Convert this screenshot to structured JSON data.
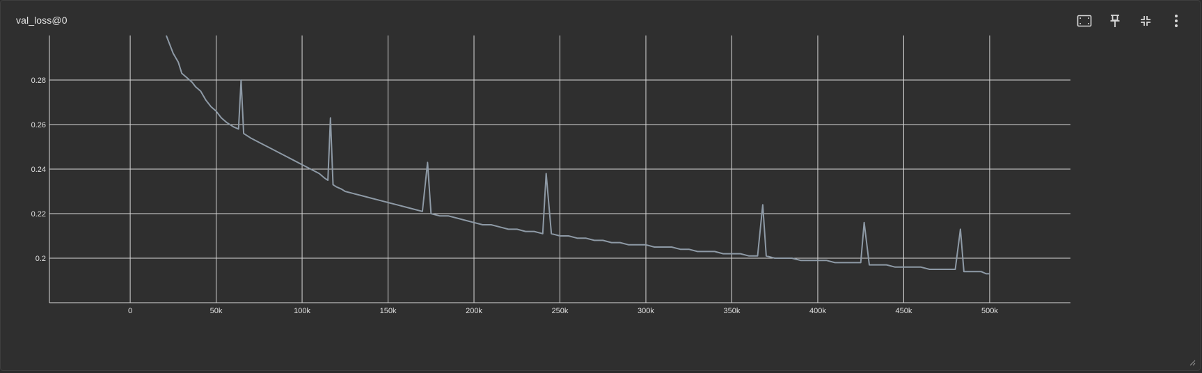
{
  "card": {
    "title": "val_loss@0"
  },
  "toolbar": {
    "items": [
      {
        "icon": "fit-domain-icon"
      },
      {
        "icon": "pin-icon"
      },
      {
        "icon": "collapse-icon"
      },
      {
        "icon": "more-vert-icon"
      }
    ]
  },
  "colors": {
    "background": "#2f2f2f",
    "grid": "#d9d9d9",
    "line": "#8e9aa6",
    "tick_text": "#e0e0e0"
  },
  "chart_data": {
    "type": "line",
    "title": "val_loss@0",
    "xlabel": "",
    "ylabel": "",
    "xlim": [
      -47000,
      547000
    ],
    "ylim": [
      0.18,
      0.3
    ],
    "x_ticks": [
      0,
      50000,
      100000,
      150000,
      200000,
      250000,
      300000,
      350000,
      400000,
      450000,
      500000
    ],
    "x_tick_labels": [
      "0",
      "50k",
      "100k",
      "150k",
      "200k",
      "250k",
      "300k",
      "350k",
      "400k",
      "450k",
      "500k"
    ],
    "y_ticks": [
      0.2,
      0.22,
      0.24,
      0.26,
      0.28
    ],
    "y_tick_labels": [
      "0.2",
      "0.22",
      "0.24",
      "0.26",
      "0.28"
    ],
    "grid": true,
    "legend": "none",
    "series": [
      {
        "x": [
          21000,
          25000,
          28000,
          30000,
          33000,
          36000,
          38000,
          41000,
          44000,
          47000,
          50000,
          53000,
          56000,
          60000,
          63000,
          64500,
          66000,
          70000,
          75000,
          80000,
          85000,
          90000,
          95000,
          100000,
          105000,
          110000,
          113000,
          115000,
          116500,
          118000,
          120000,
          123000,
          125000,
          130000,
          135000,
          140000,
          145000,
          150000,
          155000,
          160000,
          165000,
          170000,
          173000,
          175000,
          180000,
          185000,
          190000,
          195000,
          200000,
          205000,
          210000,
          215000,
          220000,
          225000,
          230000,
          235000,
          240000,
          242000,
          245000,
          250000,
          255000,
          260000,
          265000,
          270000,
          275000,
          280000,
          285000,
          290000,
          295000,
          300000,
          305000,
          310000,
          315000,
          320000,
          325000,
          330000,
          335000,
          340000,
          345000,
          350000,
          355000,
          360000,
          365000,
          368000,
          370000,
          375000,
          380000,
          385000,
          390000,
          395000,
          400000,
          405000,
          410000,
          415000,
          420000,
          425000,
          427000,
          430000,
          435000,
          440000,
          445000,
          450000,
          455000,
          460000,
          465000,
          470000,
          475000,
          480000,
          483000,
          485000,
          490000,
          495000,
          498000,
          500000
        ],
        "y": [
          0.3,
          0.292,
          0.288,
          0.283,
          0.281,
          0.279,
          0.277,
          0.275,
          0.271,
          0.268,
          0.266,
          0.263,
          0.261,
          0.259,
          0.258,
          0.28,
          0.256,
          0.254,
          0.252,
          0.25,
          0.248,
          0.246,
          0.244,
          0.242,
          0.24,
          0.238,
          0.236,
          0.235,
          0.263,
          0.233,
          0.232,
          0.231,
          0.23,
          0.229,
          0.228,
          0.227,
          0.226,
          0.225,
          0.224,
          0.223,
          0.222,
          0.221,
          0.243,
          0.22,
          0.219,
          0.219,
          0.218,
          0.217,
          0.216,
          0.215,
          0.215,
          0.214,
          0.213,
          0.213,
          0.212,
          0.212,
          0.211,
          0.238,
          0.211,
          0.21,
          0.21,
          0.209,
          0.209,
          0.208,
          0.208,
          0.207,
          0.207,
          0.206,
          0.206,
          0.206,
          0.205,
          0.205,
          0.205,
          0.204,
          0.204,
          0.203,
          0.203,
          0.203,
          0.202,
          0.202,
          0.202,
          0.201,
          0.201,
          0.224,
          0.201,
          0.2,
          0.2,
          0.2,
          0.199,
          0.199,
          0.199,
          0.199,
          0.198,
          0.198,
          0.198,
          0.198,
          0.216,
          0.197,
          0.197,
          0.197,
          0.196,
          0.196,
          0.196,
          0.196,
          0.195,
          0.195,
          0.195,
          0.195,
          0.213,
          0.194,
          0.194,
          0.194,
          0.193,
          0.193
        ]
      }
    ]
  }
}
